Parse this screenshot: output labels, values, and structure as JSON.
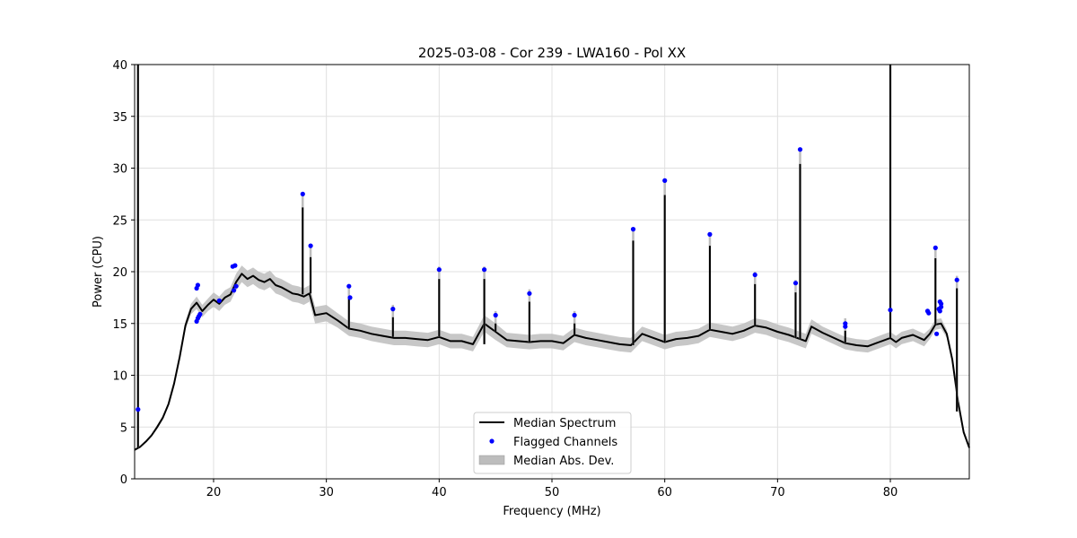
{
  "chart_data": {
    "type": "line",
    "title": "2025-03-08 - Cor 239 - LWA160 - Pol XX",
    "xlabel": "Frequency (MHz)",
    "ylabel": "Power (CPU)",
    "xlim": [
      13.0,
      87.0
    ],
    "ylim": [
      0,
      40
    ],
    "xticks": [
      20,
      30,
      40,
      50,
      60,
      70,
      80
    ],
    "yticks": [
      0,
      5,
      10,
      15,
      20,
      25,
      30,
      35,
      40
    ],
    "grid": true,
    "legend_position": "bottom-center",
    "legend": [
      "Median Spectrum",
      "Flagged Channels",
      "Median Abs. Dev."
    ],
    "colors": {
      "median": "#000000",
      "flagged": "#0000ff",
      "mad": "#bdbdbd"
    },
    "median_spectrum": {
      "name": "Median Spectrum",
      "x": [
        13.0,
        13.5,
        14.0,
        14.5,
        15.0,
        15.5,
        16.0,
        16.5,
        17.0,
        17.5,
        18.0,
        18.5,
        19.0,
        19.5,
        20.0,
        20.5,
        21.0,
        21.5,
        22.0,
        22.5,
        23.0,
        23.5,
        24.0,
        24.5,
        25.0,
        25.5,
        26.0,
        26.5,
        27.0,
        27.5,
        28.0,
        28.5,
        29.0,
        30.0,
        31.0,
        32.0,
        33.0,
        34.0,
        35.0,
        36.0,
        37.0,
        38.0,
        39.0,
        40.0,
        41.0,
        42.0,
        43.0,
        44.0,
        44.5,
        45.0,
        46.0,
        47.0,
        48.0,
        49.0,
        50.0,
        51.0,
        52.0,
        53.0,
        54.0,
        55.0,
        56.0,
        57.0,
        58.0,
        59.0,
        60.0,
        61.0,
        62.0,
        63.0,
        64.0,
        65.0,
        66.0,
        67.0,
        68.0,
        69.0,
        70.0,
        71.0,
        72.0,
        72.5,
        73.0,
        74.0,
        75.0,
        76.0,
        77.0,
        78.0,
        79.0,
        80.0,
        80.5,
        81.0,
        82.0,
        83.0,
        83.5,
        84.0,
        84.5,
        85.0,
        85.5,
        86.0,
        86.5,
        87.0
      ],
      "values": [
        2.8,
        3.1,
        3.6,
        4.2,
        5.0,
        5.9,
        7.2,
        9.2,
        11.8,
        14.8,
        16.4,
        17.0,
        16.2,
        16.8,
        17.3,
        16.9,
        17.5,
        17.8,
        19.0,
        19.8,
        19.3,
        19.6,
        19.2,
        19.0,
        19.3,
        18.7,
        18.5,
        18.2,
        17.9,
        17.8,
        17.6,
        17.9,
        15.8,
        16.0,
        15.3,
        14.5,
        14.3,
        14.0,
        13.8,
        13.6,
        13.6,
        13.5,
        13.4,
        13.7,
        13.3,
        13.3,
        13.0,
        15.0,
        14.6,
        14.2,
        13.4,
        13.3,
        13.2,
        13.3,
        13.3,
        13.1,
        13.9,
        13.6,
        13.4,
        13.2,
        13.0,
        12.9,
        14.0,
        13.6,
        13.2,
        13.5,
        13.6,
        13.8,
        14.4,
        14.2,
        14.0,
        14.3,
        14.8,
        14.6,
        14.2,
        13.9,
        13.5,
        13.3,
        14.7,
        14.1,
        13.6,
        13.1,
        12.9,
        12.8,
        13.2,
        13.6,
        13.2,
        13.6,
        13.9,
        13.4,
        14.0,
        14.9,
        15.0,
        14.0,
        11.5,
        7.5,
        4.5,
        3.0
      ],
      "mad": [
        0.1,
        0.1,
        0.1,
        0.15,
        0.2,
        0.2,
        0.2,
        0.25,
        0.3,
        0.4,
        0.5,
        0.6,
        0.6,
        0.6,
        0.7,
        0.7,
        0.7,
        0.7,
        0.8,
        0.8,
        0.8,
        0.8,
        0.8,
        0.8,
        0.8,
        0.8,
        0.8,
        0.8,
        0.8,
        0.8,
        0.8,
        0.8,
        0.8,
        0.8,
        0.7,
        0.7,
        0.7,
        0.7,
        0.7,
        0.7,
        0.7,
        0.7,
        0.7,
        0.7,
        0.7,
        0.7,
        0.7,
        0.8,
        0.8,
        0.8,
        0.7,
        0.7,
        0.7,
        0.7,
        0.7,
        0.7,
        0.7,
        0.7,
        0.7,
        0.7,
        0.7,
        0.7,
        0.7,
        0.7,
        0.7,
        0.7,
        0.7,
        0.7,
        0.7,
        0.7,
        0.7,
        0.7,
        0.7,
        0.7,
        0.7,
        0.7,
        0.7,
        0.7,
        0.7,
        0.6,
        0.6,
        0.6,
        0.6,
        0.6,
        0.6,
        0.6,
        0.6,
        0.6,
        0.6,
        0.6,
        0.5,
        0.5,
        0.5,
        0.4,
        0.3,
        0.2,
        0.15,
        0.1
      ]
    },
    "spikes": [
      {
        "x": 13.3,
        "peak": 40.0,
        "base": 3.0
      },
      {
        "x": 27.9,
        "peak": 26.2,
        "base": 17.8
      },
      {
        "x": 28.6,
        "peak": 21.4,
        "base": 17.9
      },
      {
        "x": 32.0,
        "peak": 17.6,
        "base": 14.5
      },
      {
        "x": 35.9,
        "peak": 15.6,
        "base": 13.7
      },
      {
        "x": 40.0,
        "peak": 19.3,
        "base": 13.7
      },
      {
        "x": 44.0,
        "peak": 19.3,
        "base": 13.0
      },
      {
        "x": 45.0,
        "peak": 15.0,
        "base": 14.2
      },
      {
        "x": 48.0,
        "peak": 17.1,
        "base": 13.2
      },
      {
        "x": 52.0,
        "peak": 15.0,
        "base": 13.9
      },
      {
        "x": 57.2,
        "peak": 23.0,
        "base": 12.9
      },
      {
        "x": 60.0,
        "peak": 27.4,
        "base": 13.2
      },
      {
        "x": 64.0,
        "peak": 22.5,
        "base": 14.4
      },
      {
        "x": 68.0,
        "peak": 18.8,
        "base": 14.8
      },
      {
        "x": 71.6,
        "peak": 18.0,
        "base": 13.6
      },
      {
        "x": 72.0,
        "peak": 30.4,
        "base": 13.5
      },
      {
        "x": 76.0,
        "peak": 14.3,
        "base": 13.1
      },
      {
        "x": 80.0,
        "peak": 40.0,
        "base": 13.6
      },
      {
        "x": 84.0,
        "peak": 21.3,
        "base": 14.9
      },
      {
        "x": 85.9,
        "peak": 18.4,
        "base": 6.5
      }
    ],
    "flagged_channels": {
      "name": "Flagged Channels",
      "x": [
        13.3,
        18.5,
        18.6,
        18.5,
        18.6,
        18.7,
        18.8,
        20.5,
        21.7,
        21.9,
        21.8,
        22.0,
        27.9,
        28.6,
        32.0,
        32.1,
        35.9,
        40.0,
        44.0,
        45.0,
        48.0,
        52.0,
        57.2,
        60.0,
        64.0,
        68.0,
        71.6,
        72.0,
        76.0,
        76.0,
        80.0,
        83.3,
        83.4,
        84.0,
        84.1,
        84.3,
        84.4,
        84.5,
        84.5,
        84.4,
        85.9
      ],
      "values": [
        6.7,
        18.4,
        18.7,
        15.2,
        15.5,
        15.7,
        15.9,
        17.2,
        20.5,
        20.6,
        18.2,
        18.6,
        27.5,
        22.5,
        18.6,
        17.5,
        16.4,
        20.2,
        20.2,
        15.8,
        17.9,
        15.8,
        24.1,
        28.8,
        23.6,
        19.7,
        18.9,
        31.8,
        15.0,
        14.7,
        16.3,
        16.2,
        16.0,
        22.3,
        14.0,
        16.4,
        17.1,
        16.9,
        16.6,
        16.2,
        19.2
      ]
    }
  }
}
